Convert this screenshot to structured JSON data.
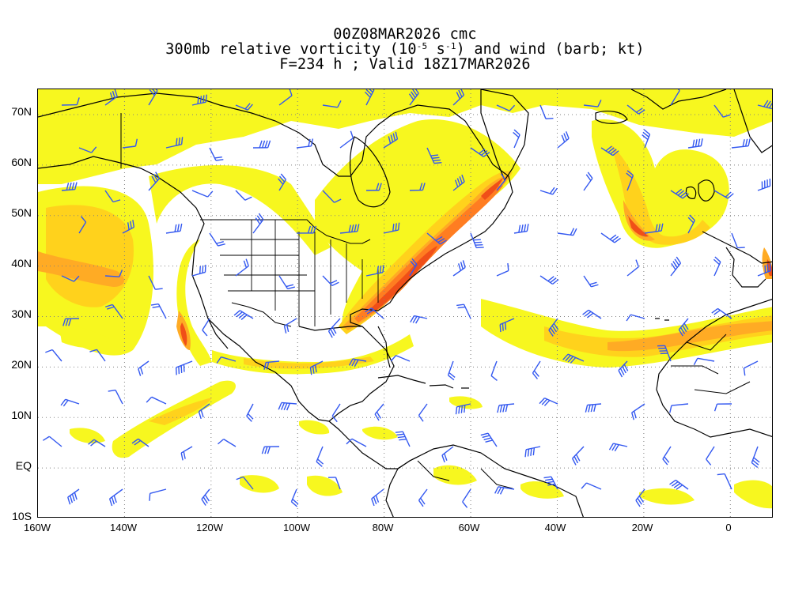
{
  "title": {
    "line1": "00Z08MAR2026 cmc",
    "line2_prefix": "300mb relative vorticity (10",
    "line2_exp1": "-5",
    "line2_mid": " s",
    "line2_exp2": "-1",
    "line2_suffix": ") and wind (barb; kt)",
    "line3": "F=234 h ; Valid 18Z17MAR2026"
  },
  "map": {
    "lat_labels": [
      "70N",
      "60N",
      "50N",
      "40N",
      "30N",
      "20N",
      "10N",
      "EQ",
      "10S"
    ],
    "lon_labels": [
      "160W",
      "140W",
      "120W",
      "100W",
      "80W",
      "60W",
      "40W",
      "20W",
      "0"
    ],
    "lon_range": [
      -160,
      10
    ],
    "lat_range": [
      -10,
      75
    ],
    "colors": {
      "low": "#f7f71f",
      "mid_low": "#ffd21c",
      "mid": "#ffab24",
      "mid_high": "#ff7d21",
      "high": "#f04f18",
      "barb": "#3358f0",
      "coast": "#000000",
      "grid": "#808080"
    }
  }
}
